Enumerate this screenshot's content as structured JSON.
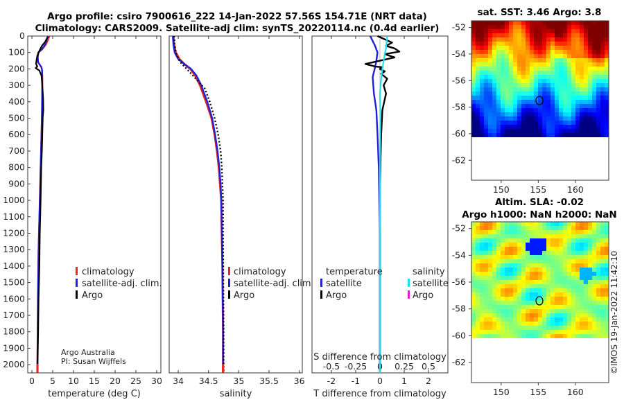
{
  "title": {
    "line1": "Argo profile: csiro 7900616_222 14-Jan-2022 57.56S 154.71E (NRT data)",
    "line2": "Climatology: CARS2009. Satellite-adj clim: synTS_20220114.nc (0.4d earlier)"
  },
  "depth_axis": {
    "ticks": [
      "0",
      "100",
      "200",
      "300",
      "400",
      "500",
      "600",
      "700",
      "800",
      "900",
      "1000",
      "1100",
      "1200",
      "1300",
      "1400",
      "1500",
      "1600",
      "1700",
      "1800",
      "1900",
      "2000"
    ]
  },
  "panel_temperature": {
    "xlabel": "temperature (deg C)",
    "xticks": [
      "0",
      "5",
      "10",
      "15",
      "20",
      "25",
      "30"
    ],
    "legend": [
      "climatology",
      "satellite-adj. clim.",
      "Argo"
    ],
    "credit1": "Argo Australia",
    "credit2": "PI: Susan Wijffels"
  },
  "panel_salinity": {
    "xlabel": "salinity",
    "xticks": [
      "34",
      "34.5",
      "35",
      "35.5",
      "36"
    ],
    "legend": [
      "climatology",
      "satellite-adj. clim.",
      "Argo"
    ]
  },
  "panel_difference": {
    "xlabel": "T difference from climatology",
    "xticks": [
      "-2",
      "-1",
      "0",
      "1",
      "2"
    ],
    "top_label": "S difference from climatology",
    "top_ticks": [
      "-0.5",
      "-0.25",
      "0",
      "0.25",
      "0.5"
    ],
    "legend_temp_title": "temperature",
    "legend_sal_title": "salinity",
    "legend_temp": [
      "satellite",
      "Argo"
    ],
    "legend_sal": [
      "satellite",
      "Argo"
    ]
  },
  "map_sst": {
    "title": "sat. SST: 3.46 Argo: 3.8",
    "yticks": [
      "-52",
      "-54",
      "-56",
      "-58",
      "-60",
      "-62"
    ],
    "xticks": [
      "150",
      "155",
      "160"
    ]
  },
  "map_sla": {
    "title1": "Altim. SLA: -0.02",
    "title2": "Argo h1000: NaN h2000: NaN",
    "yticks": [
      "-52",
      "-54",
      "-56",
      "-58",
      "-60",
      "-62"
    ],
    "xticks": [
      "150",
      "155",
      "160"
    ]
  },
  "watermark": "©IMOS 19-Jan-2022 11:42:10",
  "colors": {
    "climatology": "#e8241c",
    "satellite": "#1f1fe0",
    "argo": "#000000",
    "sat_sal": "#20e0f0",
    "argo_sal": "#e020d0"
  },
  "chart_data": [
    {
      "type": "line",
      "name": "temperature profile",
      "xlabel": "temperature (deg C)",
      "ylabel": "depth",
      "xlim": [
        -1,
        31
      ],
      "ylim": [
        2050,
        0
      ],
      "series": [
        {
          "name": "climatology",
          "x": [
            4.2,
            3.9,
            3.4,
            2.5,
            1.5,
            1.4,
            1.5,
            2.3,
            2.45,
            2.5,
            2.5,
            2.45,
            2.4,
            2.3,
            2.2,
            2.1,
            2.0,
            1.9,
            1.8,
            1.7,
            1.6,
            1.5,
            1.45,
            1.4,
            1.35,
            1.3
          ],
          "y": [
            0,
            20,
            50,
            80,
            100,
            130,
            160,
            190,
            210,
            250,
            300,
            400,
            500,
            600,
            700,
            800,
            900,
            1000,
            1100,
            1200,
            1300,
            1500,
            1600,
            1800,
            1900,
            2050
          ]
        },
        {
          "name": "satellite-adj. clim.",
          "x": [
            3.9,
            3.6,
            3.2,
            2.4,
            1.6,
            1.4,
            1.5,
            2.3,
            2.45,
            2.5,
            2.5,
            2.45,
            2.4,
            2.3,
            2.2,
            2.1,
            2.0,
            1.9,
            1.8,
            1.7,
            1.6,
            1.5,
            1.45,
            1.4,
            1.35,
            1.3
          ],
          "y": [
            0,
            20,
            50,
            80,
            100,
            130,
            160,
            190,
            210,
            250,
            300,
            400,
            500,
            600,
            700,
            800,
            900,
            1000,
            1100,
            1200,
            1300,
            1500,
            1600,
            1800,
            1900,
            2050
          ]
        },
        {
          "name": "Argo",
          "x": [
            3.8,
            3.2,
            2.4,
            1.8,
            1.3,
            1.1,
            1.0,
            1.3,
            0.9,
            1.8,
            2.3,
            2.5,
            2.7,
            2.75,
            2.6,
            2.5,
            2.4,
            2.25,
            2.1,
            1.9,
            1.8,
            1.6,
            1.5,
            1.4,
            1.35
          ],
          "y": [
            5,
            35,
            60,
            90,
            120,
            150,
            170,
            185,
            195,
            210,
            240,
            300,
            380,
            450,
            500,
            600,
            700,
            800,
            1000,
            1200,
            1400,
            1600,
            1800,
            1950,
            2040
          ]
        }
      ]
    },
    {
      "type": "line",
      "name": "salinity profile",
      "xlabel": "salinity",
      "ylabel": "depth",
      "xlim": [
        33.85,
        36.05
      ],
      "ylim": [
        2050,
        0
      ],
      "series": [
        {
          "name": "climatology",
          "x": [
            33.92,
            33.93,
            33.96,
            34.02,
            34.1,
            34.2,
            34.28,
            34.36,
            34.46,
            34.55,
            34.6,
            34.64,
            34.67,
            34.69,
            34.71,
            34.72,
            34.73,
            34.735,
            34.74,
            34.74
          ],
          "y": [
            0,
            50,
            100,
            140,
            170,
            200,
            240,
            300,
            400,
            500,
            600,
            700,
            800,
            900,
            1000,
            1200,
            1400,
            1600,
            1800,
            2050
          ]
        },
        {
          "name": "satellite-adj. clim.",
          "x": [
            33.91,
            33.92,
            33.94,
            34.0,
            34.1,
            34.21,
            34.3,
            34.38,
            34.48,
            34.56,
            34.61,
            34.65,
            34.68,
            34.7,
            34.71,
            34.72,
            34.73,
            34.735,
            34.74,
            34.74
          ],
          "y": [
            0,
            50,
            100,
            140,
            170,
            200,
            240,
            300,
            400,
            500,
            600,
            700,
            800,
            900,
            1000,
            1200,
            1400,
            1600,
            1800,
            2050
          ]
        },
        {
          "name": "Argo",
          "x": [
            33.93,
            33.94,
            33.96,
            34.0,
            34.06,
            34.14,
            34.24,
            34.34,
            34.44,
            34.52,
            34.6,
            34.66,
            34.7,
            34.72,
            34.73,
            34.74,
            34.74,
            34.745,
            34.75,
            34.75
          ],
          "y": [
            0,
            50,
            100,
            140,
            170,
            200,
            240,
            280,
            320,
            400,
            500,
            600,
            700,
            800,
            900,
            1000,
            1200,
            1500,
            1800,
            2040
          ]
        }
      ]
    },
    {
      "type": "line",
      "name": "difference from climatology",
      "xlabel": "T difference from climatology",
      "top_xlabel": "S difference from climatology",
      "xlim": [
        -2.8,
        2.8
      ],
      "ylim": [
        2050,
        0
      ],
      "series": [
        {
          "name": "satellite temperature",
          "x": [
            -0.4,
            -0.2,
            -0.1,
            -0.15,
            -0.2,
            -0.3,
            -0.25,
            -0.15,
            -0.1,
            -0.05,
            0.0,
            0.0,
            0.0
          ],
          "y": [
            0,
            60,
            100,
            150,
            190,
            250,
            350,
            450,
            600,
            800,
            1200,
            1600,
            2050
          ]
        },
        {
          "name": "Argo temperature",
          "x": [
            -0.1,
            0.5,
            0.25,
            0.6,
            0.8,
            0.2,
            0.6,
            0.0,
            -0.6,
            -0.2,
            0.1,
            0.0,
            0.2,
            0.05,
            0.3,
            0.15,
            0.25,
            0.1,
            0.05,
            0.0,
            0.0,
            0.0
          ],
          "y": [
            0,
            40,
            60,
            75,
            95,
            110,
            130,
            150,
            170,
            185,
            190,
            200,
            215,
            230,
            260,
            300,
            350,
            450,
            600,
            900,
            1500,
            2040
          ]
        },
        {
          "name": "satellite salinity",
          "x": [
            0.3,
            0.25,
            0.15,
            0.1,
            0.05,
            0.0,
            0.02,
            0.0,
            0.0,
            0.0
          ],
          "y": [
            0,
            70,
            150,
            200,
            260,
            350,
            500,
            800,
            1400,
            2050
          ]
        },
        {
          "name": "Argo salinity",
          "x": [],
          "y": []
        }
      ]
    }
  ]
}
